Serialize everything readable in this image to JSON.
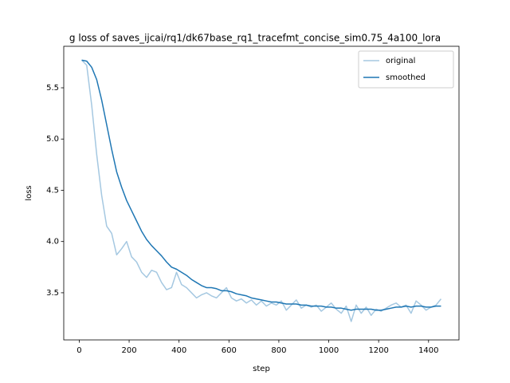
{
  "chart_data": {
    "type": "line",
    "title": "g loss of saves_ijcai/rq1/dk67base_rq1_tracefmt_concise_sim0.75_4a100_lora",
    "xlabel": "step",
    "ylabel": "loss",
    "x": [
      10,
      30,
      50,
      70,
      90,
      110,
      130,
      150,
      170,
      190,
      210,
      230,
      250,
      270,
      290,
      310,
      330,
      350,
      370,
      390,
      410,
      430,
      450,
      470,
      490,
      510,
      530,
      550,
      570,
      590,
      610,
      630,
      650,
      670,
      690,
      710,
      730,
      750,
      770,
      790,
      810,
      830,
      850,
      870,
      890,
      910,
      930,
      950,
      970,
      990,
      1010,
      1030,
      1050,
      1070,
      1090,
      1110,
      1130,
      1150,
      1170,
      1190,
      1210,
      1230,
      1250,
      1270,
      1290,
      1310,
      1330,
      1350,
      1370,
      1390,
      1410,
      1430,
      1450
    ],
    "series": [
      {
        "name": "original",
        "color": "#a5c8e1",
        "values": [
          5.77,
          5.72,
          5.33,
          4.85,
          4.45,
          4.15,
          4.08,
          3.87,
          3.93,
          4.0,
          3.85,
          3.8,
          3.7,
          3.65,
          3.72,
          3.7,
          3.6,
          3.53,
          3.55,
          3.7,
          3.58,
          3.55,
          3.5,
          3.45,
          3.48,
          3.5,
          3.47,
          3.45,
          3.5,
          3.55,
          3.45,
          3.42,
          3.44,
          3.4,
          3.43,
          3.38,
          3.42,
          3.37,
          3.4,
          3.38,
          3.42,
          3.33,
          3.38,
          3.43,
          3.35,
          3.38,
          3.36,
          3.38,
          3.32,
          3.36,
          3.4,
          3.34,
          3.3,
          3.37,
          3.22,
          3.38,
          3.3,
          3.36,
          3.28,
          3.34,
          3.32,
          3.35,
          3.38,
          3.4,
          3.36,
          3.38,
          3.3,
          3.42,
          3.38,
          3.33,
          3.36,
          3.38,
          3.44
        ]
      },
      {
        "name": "smoothed",
        "color": "#1f77b4",
        "values": [
          5.77,
          5.76,
          5.7,
          5.58,
          5.38,
          5.14,
          4.9,
          4.68,
          4.53,
          4.4,
          4.3,
          4.2,
          4.1,
          4.02,
          3.96,
          3.91,
          3.86,
          3.8,
          3.75,
          3.73,
          3.7,
          3.67,
          3.63,
          3.6,
          3.57,
          3.55,
          3.55,
          3.54,
          3.52,
          3.52,
          3.51,
          3.49,
          3.48,
          3.47,
          3.45,
          3.44,
          3.43,
          3.42,
          3.41,
          3.41,
          3.4,
          3.39,
          3.39,
          3.39,
          3.38,
          3.38,
          3.37,
          3.37,
          3.37,
          3.36,
          3.36,
          3.35,
          3.35,
          3.34,
          3.33,
          3.34,
          3.34,
          3.34,
          3.34,
          3.33,
          3.33,
          3.34,
          3.35,
          3.36,
          3.36,
          3.37,
          3.36,
          3.37,
          3.37,
          3.36,
          3.36,
          3.37,
          3.37
        ]
      }
    ],
    "xlim": [
      -62,
      1522
    ],
    "xticks": [
      0,
      200,
      400,
      600,
      800,
      1000,
      1200,
      1400
    ],
    "ylim": [
      3.04,
      5.905
    ],
    "yticks": [
      {
        "value": 3.5,
        "label": "3.5"
      },
      {
        "value": 4,
        "label": "4.0"
      },
      {
        "value": 4.5,
        "label": "4.5"
      },
      {
        "value": 5,
        "label": "5.0"
      },
      {
        "value": 5.5,
        "label": "5.5"
      }
    ],
    "legend": "upper right",
    "grid": false
  }
}
